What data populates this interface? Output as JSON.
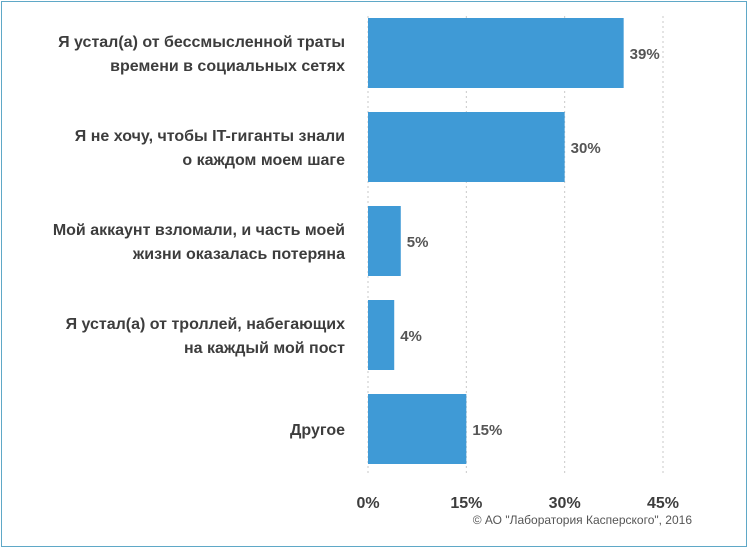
{
  "chart_data": {
    "type": "bar",
    "orientation": "horizontal",
    "categories": [
      [
        "Я устал(а) от бессмысленной траты",
        "времени в социальных сетях"
      ],
      [
        "Я не хочу, чтобы IT-гиганты знали",
        "о каждом моем шаге"
      ],
      [
        "Мой аккаунт взломали, и часть моей",
        "жизни оказалась потеряна"
      ],
      [
        "Я устал(а) от троллей, набегающих",
        "на каждый мой пост"
      ],
      [
        "Другое"
      ]
    ],
    "values": [
      39,
      30,
      5,
      4,
      15
    ],
    "value_labels": [
      "39%",
      "30%",
      "5%",
      "4%",
      "15%"
    ],
    "xlim": [
      0,
      45
    ],
    "xticks": [
      0,
      15,
      30,
      45
    ],
    "xtick_labels": [
      "0%",
      "15%",
      "30%",
      "45%"
    ],
    "grid": true,
    "bar_color": "#3f9ad6",
    "grid_color": "#c9c9c9"
  },
  "footer": {
    "copyright": "© АО \"Лаборатория Касперского\", 2016"
  }
}
